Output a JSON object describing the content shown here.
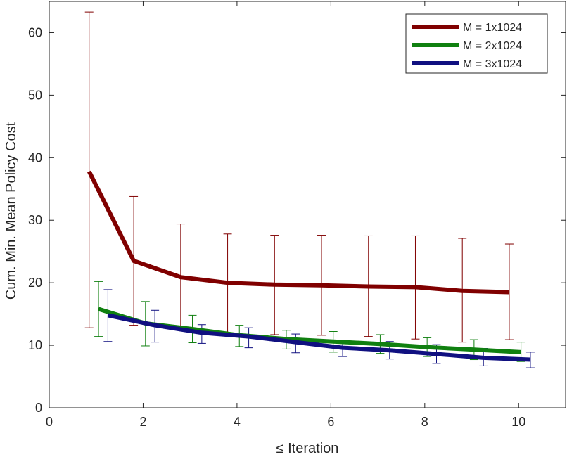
{
  "chart_data": {
    "type": "line",
    "title": "",
    "xlabel": "≤ Iteration",
    "ylabel": "Cum. Min. Mean Policy Cost",
    "xlim": [
      0,
      11
    ],
    "ylim": [
      0,
      65
    ],
    "xticks": [
      0,
      2,
      4,
      6,
      8,
      10
    ],
    "yticks": [
      0,
      10,
      20,
      30,
      40,
      50,
      60
    ],
    "grid": false,
    "legend_position": "top-right",
    "series": [
      {
        "name": "M = 1x1024",
        "color": "#800000",
        "x": [
          0.85,
          1.8,
          2.8,
          3.8,
          4.8,
          5.8,
          6.8,
          7.8,
          8.8,
          9.8
        ],
        "y": [
          37.8,
          23.5,
          20.9,
          20.0,
          19.7,
          19.6,
          19.4,
          19.3,
          18.7,
          18.5
        ],
        "err_low": [
          12.8,
          13.2,
          12.6,
          12.0,
          11.7,
          11.6,
          11.4,
          11.0,
          10.5,
          10.9
        ],
        "err_high": [
          63.3,
          33.8,
          29.4,
          27.8,
          27.6,
          27.6,
          27.5,
          27.5,
          27.1,
          26.2
        ]
      },
      {
        "name": "M = 2x1024",
        "color": "#108010",
        "x": [
          1.05,
          2.05,
          3.05,
          4.05,
          5.05,
          6.05,
          7.05,
          8.05,
          9.05,
          10.05
        ],
        "y": [
          15.8,
          13.5,
          12.6,
          11.6,
          11.0,
          10.6,
          10.2,
          9.7,
          9.3,
          8.9
        ],
        "err_low": [
          11.4,
          9.9,
          10.4,
          9.8,
          9.4,
          8.9,
          8.7,
          8.2,
          7.7,
          7.4
        ],
        "err_high": [
          20.2,
          17.0,
          14.8,
          13.2,
          12.4,
          12.2,
          11.7,
          11.2,
          10.9,
          10.5
        ]
      },
      {
        "name": "M = 3x1024",
        "color": "#101080",
        "x": [
          1.25,
          2.25,
          3.25,
          4.25,
          5.25,
          6.25,
          7.25,
          8.25,
          9.25,
          10.25
        ],
        "y": [
          14.8,
          13.2,
          12.0,
          11.4,
          10.5,
          9.6,
          9.2,
          8.6,
          8.0,
          7.7
        ],
        "err_low": [
          10.6,
          10.5,
          10.3,
          9.6,
          8.8,
          8.2,
          7.8,
          7.1,
          6.7,
          6.4
        ],
        "err_high": [
          18.9,
          15.6,
          13.3,
          12.8,
          11.8,
          10.8,
          10.6,
          10.1,
          9.5,
          8.9
        ]
      }
    ]
  }
}
